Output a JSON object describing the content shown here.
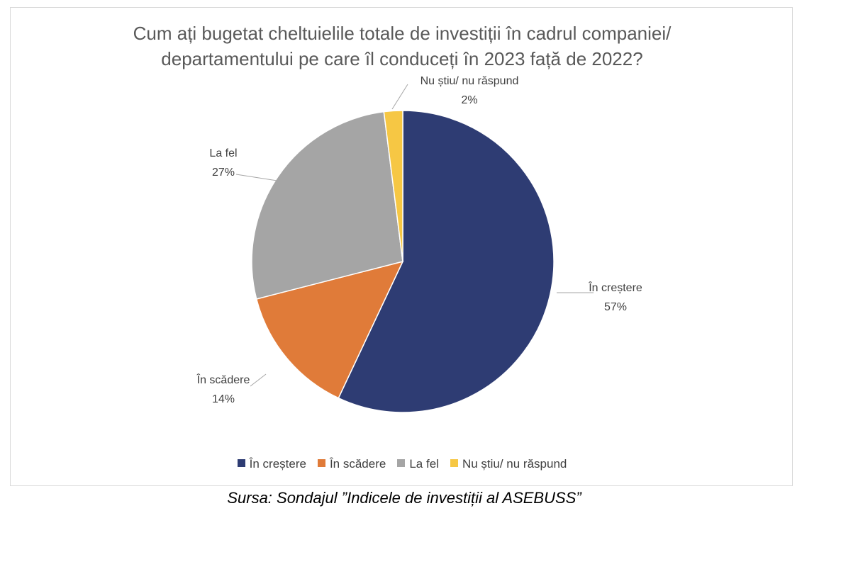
{
  "chart_data": {
    "type": "pie",
    "title_lines": [
      "Cum ați bugetat cheltuielile totale de investiții în cadrul companiei/",
      "departamentului pe care îl conduceți în 2023 față de 2022?"
    ],
    "categories": [
      "În creștere",
      "În scădere",
      "La fel",
      "Nu știu/ nu răspund"
    ],
    "values": [
      57,
      14,
      27,
      2
    ],
    "value_labels": [
      "57%",
      "14%",
      "27%",
      "2%"
    ],
    "colors": [
      "#2e3c73",
      "#e07b39",
      "#a5a5a5",
      "#f6c744"
    ],
    "legend_position": "bottom"
  },
  "source": "Sursa: Sondajul ”Indicele de investiții al ASEBUSS”"
}
